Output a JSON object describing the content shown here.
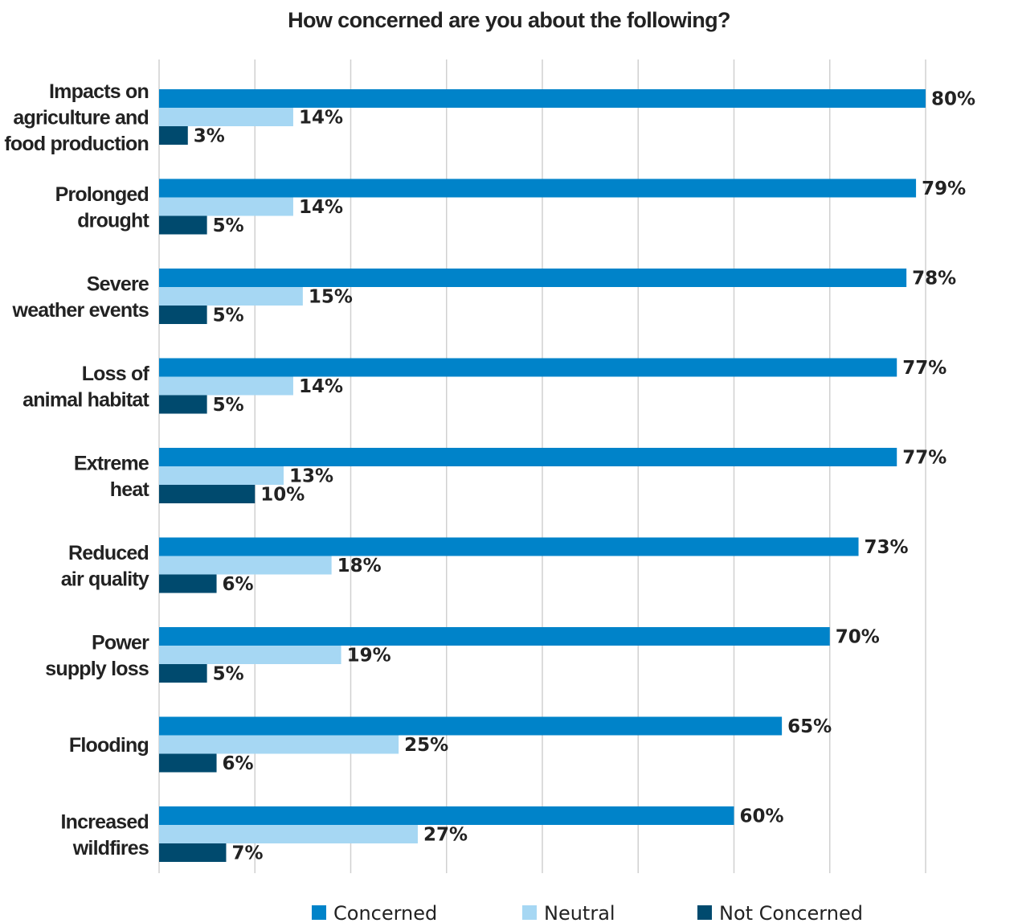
{
  "colors": {
    "concerned": "#0083c9",
    "neutral": "#a6d7f3",
    "not_concerned": "#004a6e",
    "grid": "#d0d0d0",
    "axis": "#7cbf5a"
  },
  "chart_data": {
    "type": "bar",
    "orientation": "horizontal",
    "title": "How concerned are you about the following?",
    "xlabel": "",
    "ylabel": "",
    "xlim": [
      0,
      80
    ],
    "grid": true,
    "legend_position": "bottom",
    "value_suffix": "%",
    "categories": [
      [
        "Impacts on",
        "agriculture and",
        "food production"
      ],
      [
        "Prolonged",
        "drought"
      ],
      [
        "Severe",
        "weather events"
      ],
      [
        "Loss of",
        "animal habitat"
      ],
      [
        "Extreme",
        "heat"
      ],
      [
        "Reduced",
        "air quality"
      ],
      [
        "Power",
        "supply loss"
      ],
      [
        "Flooding"
      ],
      [
        "Increased",
        "wildfires"
      ]
    ],
    "series": [
      {
        "name": "Concerned",
        "values": [
          80,
          79,
          78,
          77,
          77,
          73,
          70,
          65,
          60
        ]
      },
      {
        "name": "Neutral",
        "values": [
          14,
          14,
          15,
          14,
          13,
          18,
          19,
          25,
          27
        ]
      },
      {
        "name": "Not Concerned",
        "values": [
          3,
          5,
          5,
          5,
          10,
          6,
          5,
          6,
          7
        ]
      }
    ]
  }
}
